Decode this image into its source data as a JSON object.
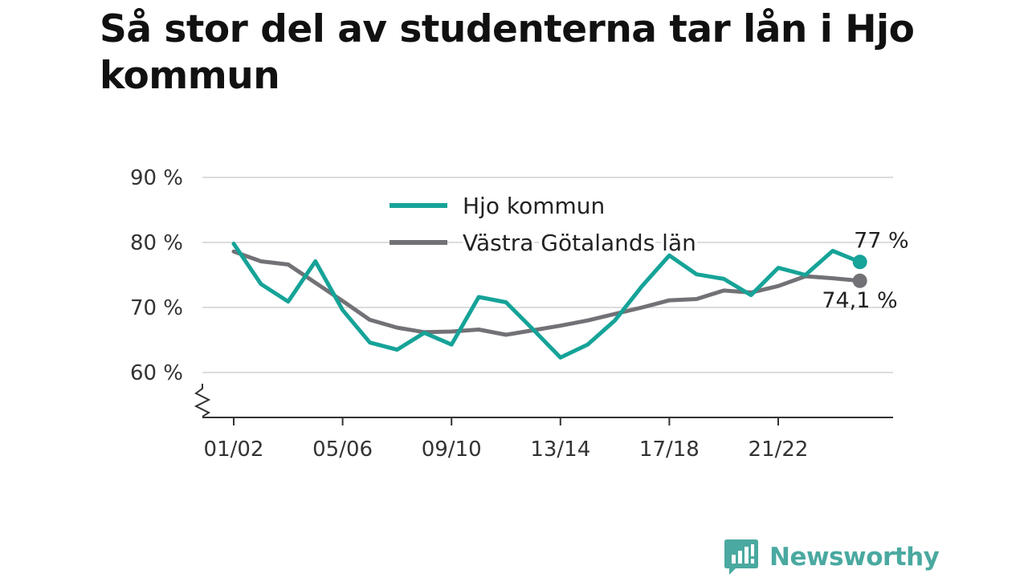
{
  "title": "Så stor del av studenterna tar lån i Hjo kommun",
  "brand": {
    "name": "Newsworthy",
    "icon": "newsworthy-logo-icon",
    "color": "#4aa9a0"
  },
  "chart_data": {
    "type": "line",
    "title": "Så stor del av studenterna tar lån i Hjo kommun",
    "xlabel": "",
    "ylabel": "",
    "x": [
      "01/02",
      "02/03",
      "03/04",
      "04/05",
      "05/06",
      "06/07",
      "07/08",
      "08/09",
      "09/10",
      "10/11",
      "11/12",
      "12/13",
      "13/14",
      "14/15",
      "15/16",
      "16/17",
      "17/18",
      "18/19",
      "19/20",
      "20/21",
      "21/22",
      "22/23",
      "23/24",
      "24/25"
    ],
    "x_tick_labels": [
      "01/02",
      "05/06",
      "09/10",
      "13/14",
      "17/18",
      "21/22"
    ],
    "ylim": [
      53,
      90
    ],
    "y_ticks": [
      60,
      70,
      80,
      90
    ],
    "y_tick_labels": [
      "60 %",
      "70 %",
      "80 %",
      "90 %"
    ],
    "axis_break": true,
    "grid": true,
    "legend_position": "top-center",
    "series": [
      {
        "name": "Hjo kommun",
        "color": "#16a398",
        "values": [
          79.8,
          73.6,
          70.9,
          77.1,
          69.6,
          64.6,
          63.5,
          66.1,
          64.3,
          71.6,
          70.8,
          66.6,
          62.3,
          64.3,
          68.0,
          73.3,
          78.0,
          75.1,
          74.4,
          71.9,
          76.1,
          75.0,
          78.7,
          77.0
        ],
        "end_label": "77 %"
      },
      {
        "name": "Västra Götalands län",
        "color": "#727176",
        "values": [
          78.6,
          77.1,
          76.6,
          73.8,
          71.0,
          68.1,
          66.9,
          66.2,
          66.3,
          66.6,
          65.8,
          66.5,
          67.2,
          68.0,
          69.0,
          70.0,
          71.1,
          71.3,
          72.6,
          72.3,
          73.3,
          74.8,
          74.5,
          74.1
        ],
        "end_label": "74,1 %"
      }
    ]
  }
}
